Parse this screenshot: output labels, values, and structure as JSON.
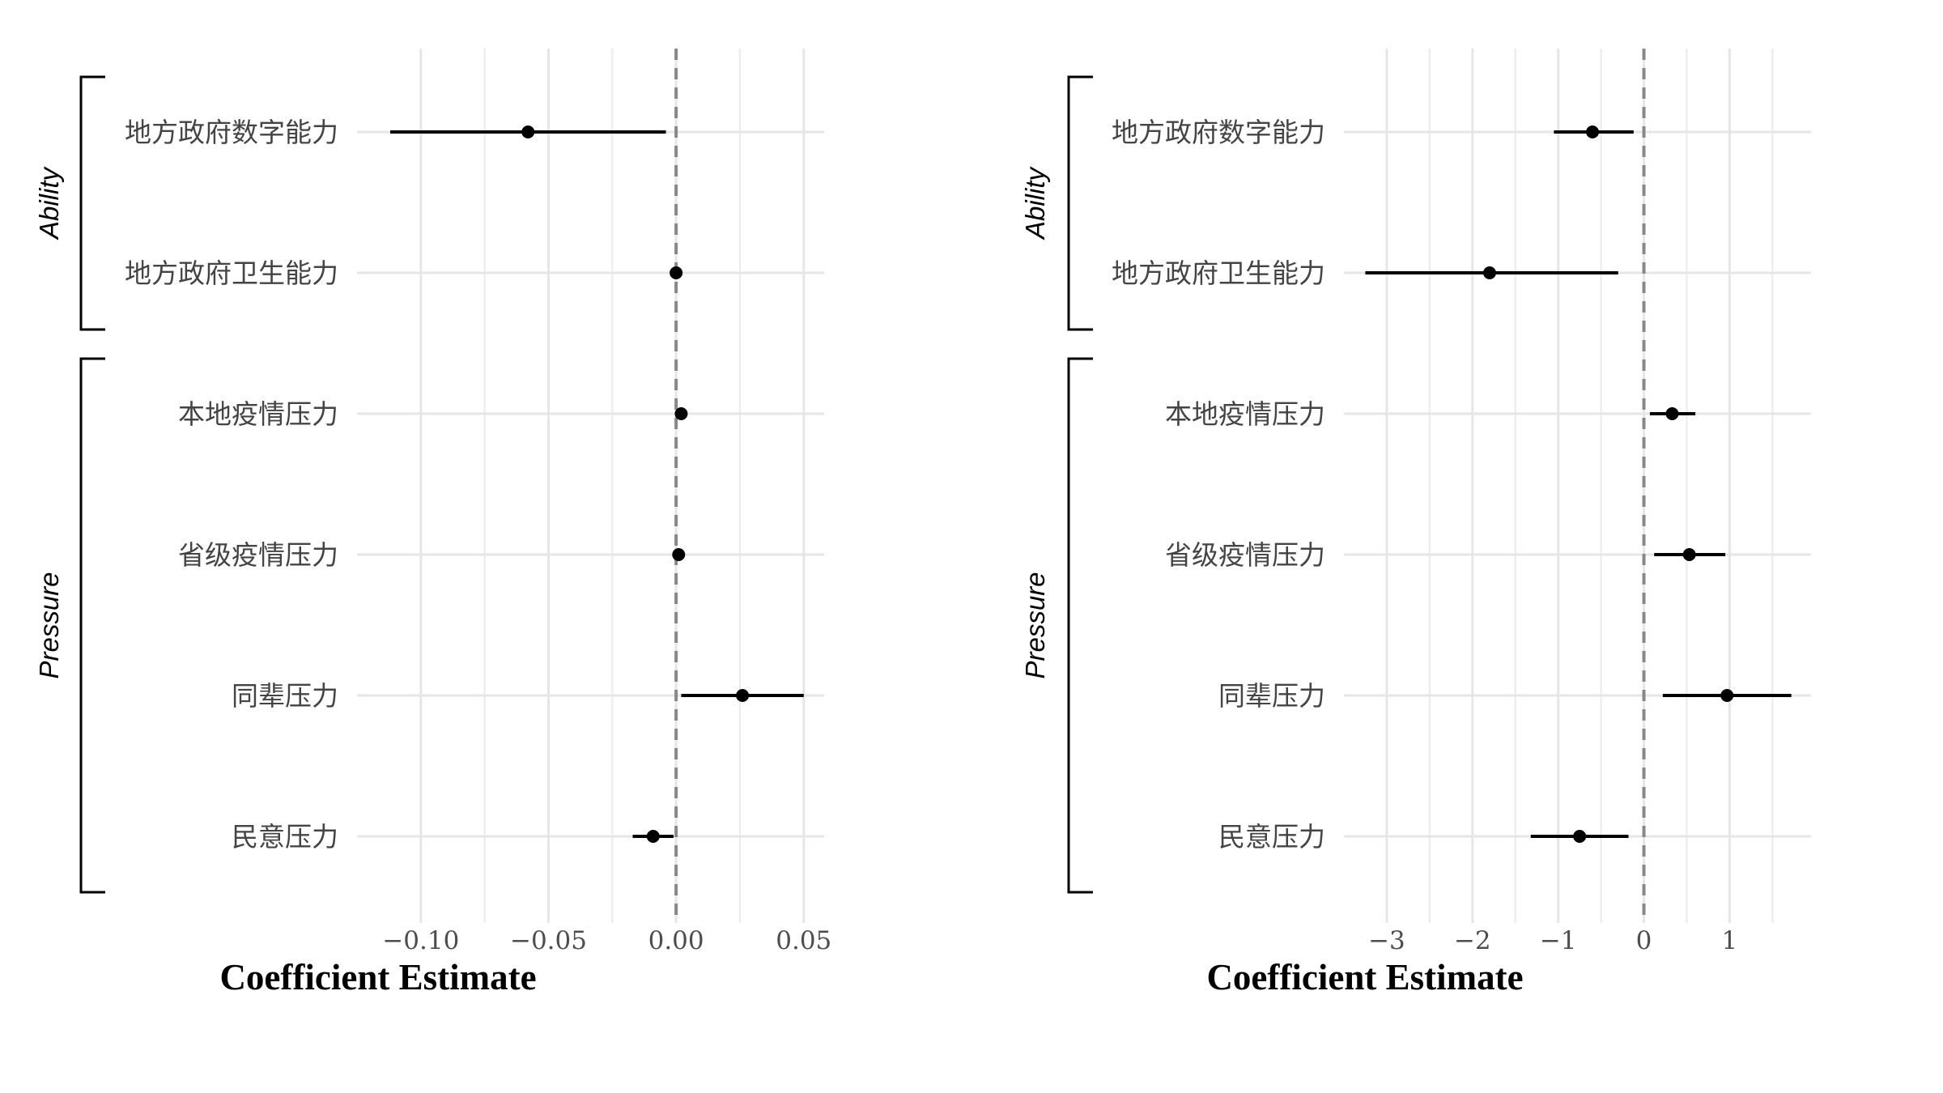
{
  "chart_data": [
    {
      "type": "scatter",
      "xlabel": "Coefficient Estimate",
      "xlim": [
        -0.125,
        0.058
      ],
      "xticks": [
        -0.1,
        -0.05,
        0.0,
        0.05
      ],
      "xtick_labels": [
        "−0.10",
        "−0.05",
        "0.00",
        "0.05"
      ],
      "minor_gridlines": [
        -0.075,
        -0.025,
        0.025
      ],
      "reference_line": 0,
      "categories": [
        "地方政府数字能力",
        "地方政府卫生能力",
        "本地疫情压力",
        "省级疫情压力",
        "同辈压力",
        "民意压力"
      ],
      "groups": [
        {
          "label": "Ability",
          "items": [
            "地方政府数字能力",
            "地方政府卫生能力"
          ]
        },
        {
          "label": "Pressure",
          "items": [
            "本地疫情压力",
            "省级疫情压力",
            "同辈压力",
            "民意压力"
          ]
        }
      ],
      "estimates": [
        -0.058,
        0.0,
        0.002,
        0.001,
        0.026,
        -0.009
      ],
      "ci_low": [
        -0.112,
        0.0,
        0.002,
        0.001,
        0.002,
        -0.017
      ],
      "ci_high": [
        -0.004,
        0.0,
        0.002,
        0.001,
        0.05,
        -0.001
      ],
      "grid": true
    },
    {
      "type": "scatter",
      "xlabel": "Coefficient Estimate",
      "xlim": [
        -3.5,
        1.95
      ],
      "xticks": [
        -3,
        -2,
        -1,
        0,
        1
      ],
      "xtick_labels": [
        "−3",
        "−2",
        "−1",
        "0",
        "1"
      ],
      "minor_gridlines": [
        -2.5,
        -1.5,
        -0.5,
        0.5,
        1.5
      ],
      "reference_line": 0,
      "categories": [
        "地方政府数字能力",
        "地方政府卫生能力",
        "本地疫情压力",
        "省级疫情压力",
        "同辈压力",
        "民意压力"
      ],
      "groups": [
        {
          "label": "Ability",
          "items": [
            "地方政府数字能力",
            "地方政府卫生能力"
          ]
        },
        {
          "label": "Pressure",
          "items": [
            "本地疫情压力",
            "省级疫情压力",
            "同辈压力",
            "民意压力"
          ]
        }
      ],
      "estimates": [
        -0.6,
        -1.8,
        0.33,
        0.53,
        0.97,
        -0.75
      ],
      "ci_low": [
        -1.05,
        -3.25,
        0.07,
        0.12,
        0.22,
        -1.32
      ],
      "ci_high": [
        -0.12,
        -0.3,
        0.6,
        0.95,
        1.72,
        -0.18
      ],
      "grid": true
    }
  ]
}
